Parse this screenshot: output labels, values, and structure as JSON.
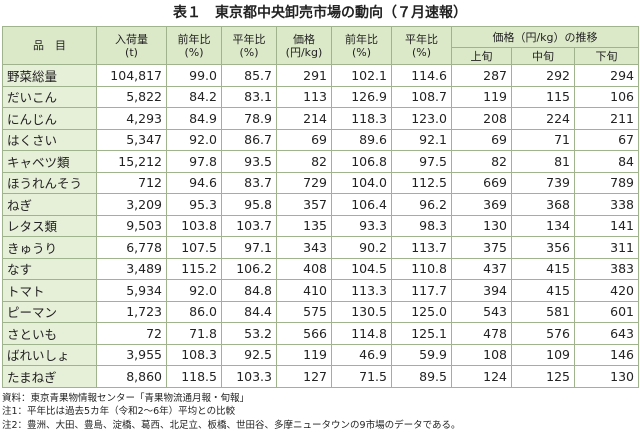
{
  "title": "表１　東京都中央卸売市場の動向（７月速報）",
  "table": {
    "header": [
      [
        "品　目"
      ],
      [
        "入荷量",
        "(t)"
      ],
      [
        "前年比",
        "(%)"
      ],
      [
        "平年比",
        "(%)"
      ],
      [
        "価格",
        "(円/kg)"
      ],
      [
        "前年比",
        "(%)"
      ],
      [
        "平年比",
        "(%)"
      ],
      [
        "価格（円/kg）の推移"
      ]
    ],
    "subheader": [
      "上旬",
      "中旬",
      "下旬"
    ],
    "rows": [
      [
        "野菜総量",
        "104,817",
        "99.0",
        "85.7",
        "291",
        "102.1",
        "114.6",
        "287",
        "292",
        "294"
      ],
      [
        "だいこん",
        "5,822",
        "84.2",
        "83.1",
        "113",
        "126.9",
        "108.7",
        "119",
        "115",
        "106"
      ],
      [
        "にんじん",
        "4,293",
        "84.9",
        "78.9",
        "214",
        "118.3",
        "123.0",
        "208",
        "224",
        "211"
      ],
      [
        "はくさい",
        "5,347",
        "92.0",
        "86.7",
        "69",
        "89.6",
        "92.1",
        "69",
        "71",
        "67"
      ],
      [
        "キャベツ類",
        "15,212",
        "97.8",
        "93.5",
        "82",
        "106.8",
        "97.5",
        "82",
        "81",
        "84"
      ],
      [
        "ほうれんそう",
        "712",
        "94.6",
        "83.7",
        "729",
        "104.0",
        "112.5",
        "669",
        "739",
        "789"
      ],
      [
        "ねぎ",
        "3,209",
        "95.3",
        "95.8",
        "357",
        "106.4",
        "96.2",
        "369",
        "368",
        "338"
      ],
      [
        "レタス類",
        "9,503",
        "103.8",
        "103.7",
        "135",
        "93.3",
        "98.3",
        "130",
        "134",
        "141"
      ],
      [
        "きゅうり",
        "6,778",
        "107.5",
        "97.1",
        "343",
        "90.2",
        "113.7",
        "375",
        "356",
        "311"
      ],
      [
        "なす",
        "3,489",
        "115.2",
        "106.2",
        "408",
        "104.5",
        "110.8",
        "437",
        "415",
        "383"
      ],
      [
        "トマト",
        "5,934",
        "92.0",
        "84.8",
        "410",
        "113.3",
        "117.7",
        "394",
        "415",
        "420"
      ],
      [
        "ピーマン",
        "1,723",
        "86.0",
        "84.4",
        "575",
        "130.5",
        "125.0",
        "543",
        "581",
        "601"
      ],
      [
        "さといも",
        "72",
        "71.8",
        "53.2",
        "566",
        "114.8",
        "125.1",
        "478",
        "576",
        "643"
      ],
      [
        "ばれいしょ",
        "3,955",
        "108.3",
        "92.5",
        "119",
        "46.9",
        "59.9",
        "108",
        "109",
        "146"
      ],
      [
        "たまねぎ",
        "8,860",
        "118.5",
        "103.3",
        "127",
        "71.5",
        "89.5",
        "124",
        "125",
        "130"
      ]
    ]
  },
  "notes": [
    "資料：東京青果物情報センター「青果物流通月報・旬報」",
    "注1：平年比は過去5カ年（令和2～6年）平均との比較",
    "注2：豊洲、大田、豊島、淀橋、葛西、北足立、板橋、世田谷、多摩ニュータウンの9市場のデータである。"
  ]
}
